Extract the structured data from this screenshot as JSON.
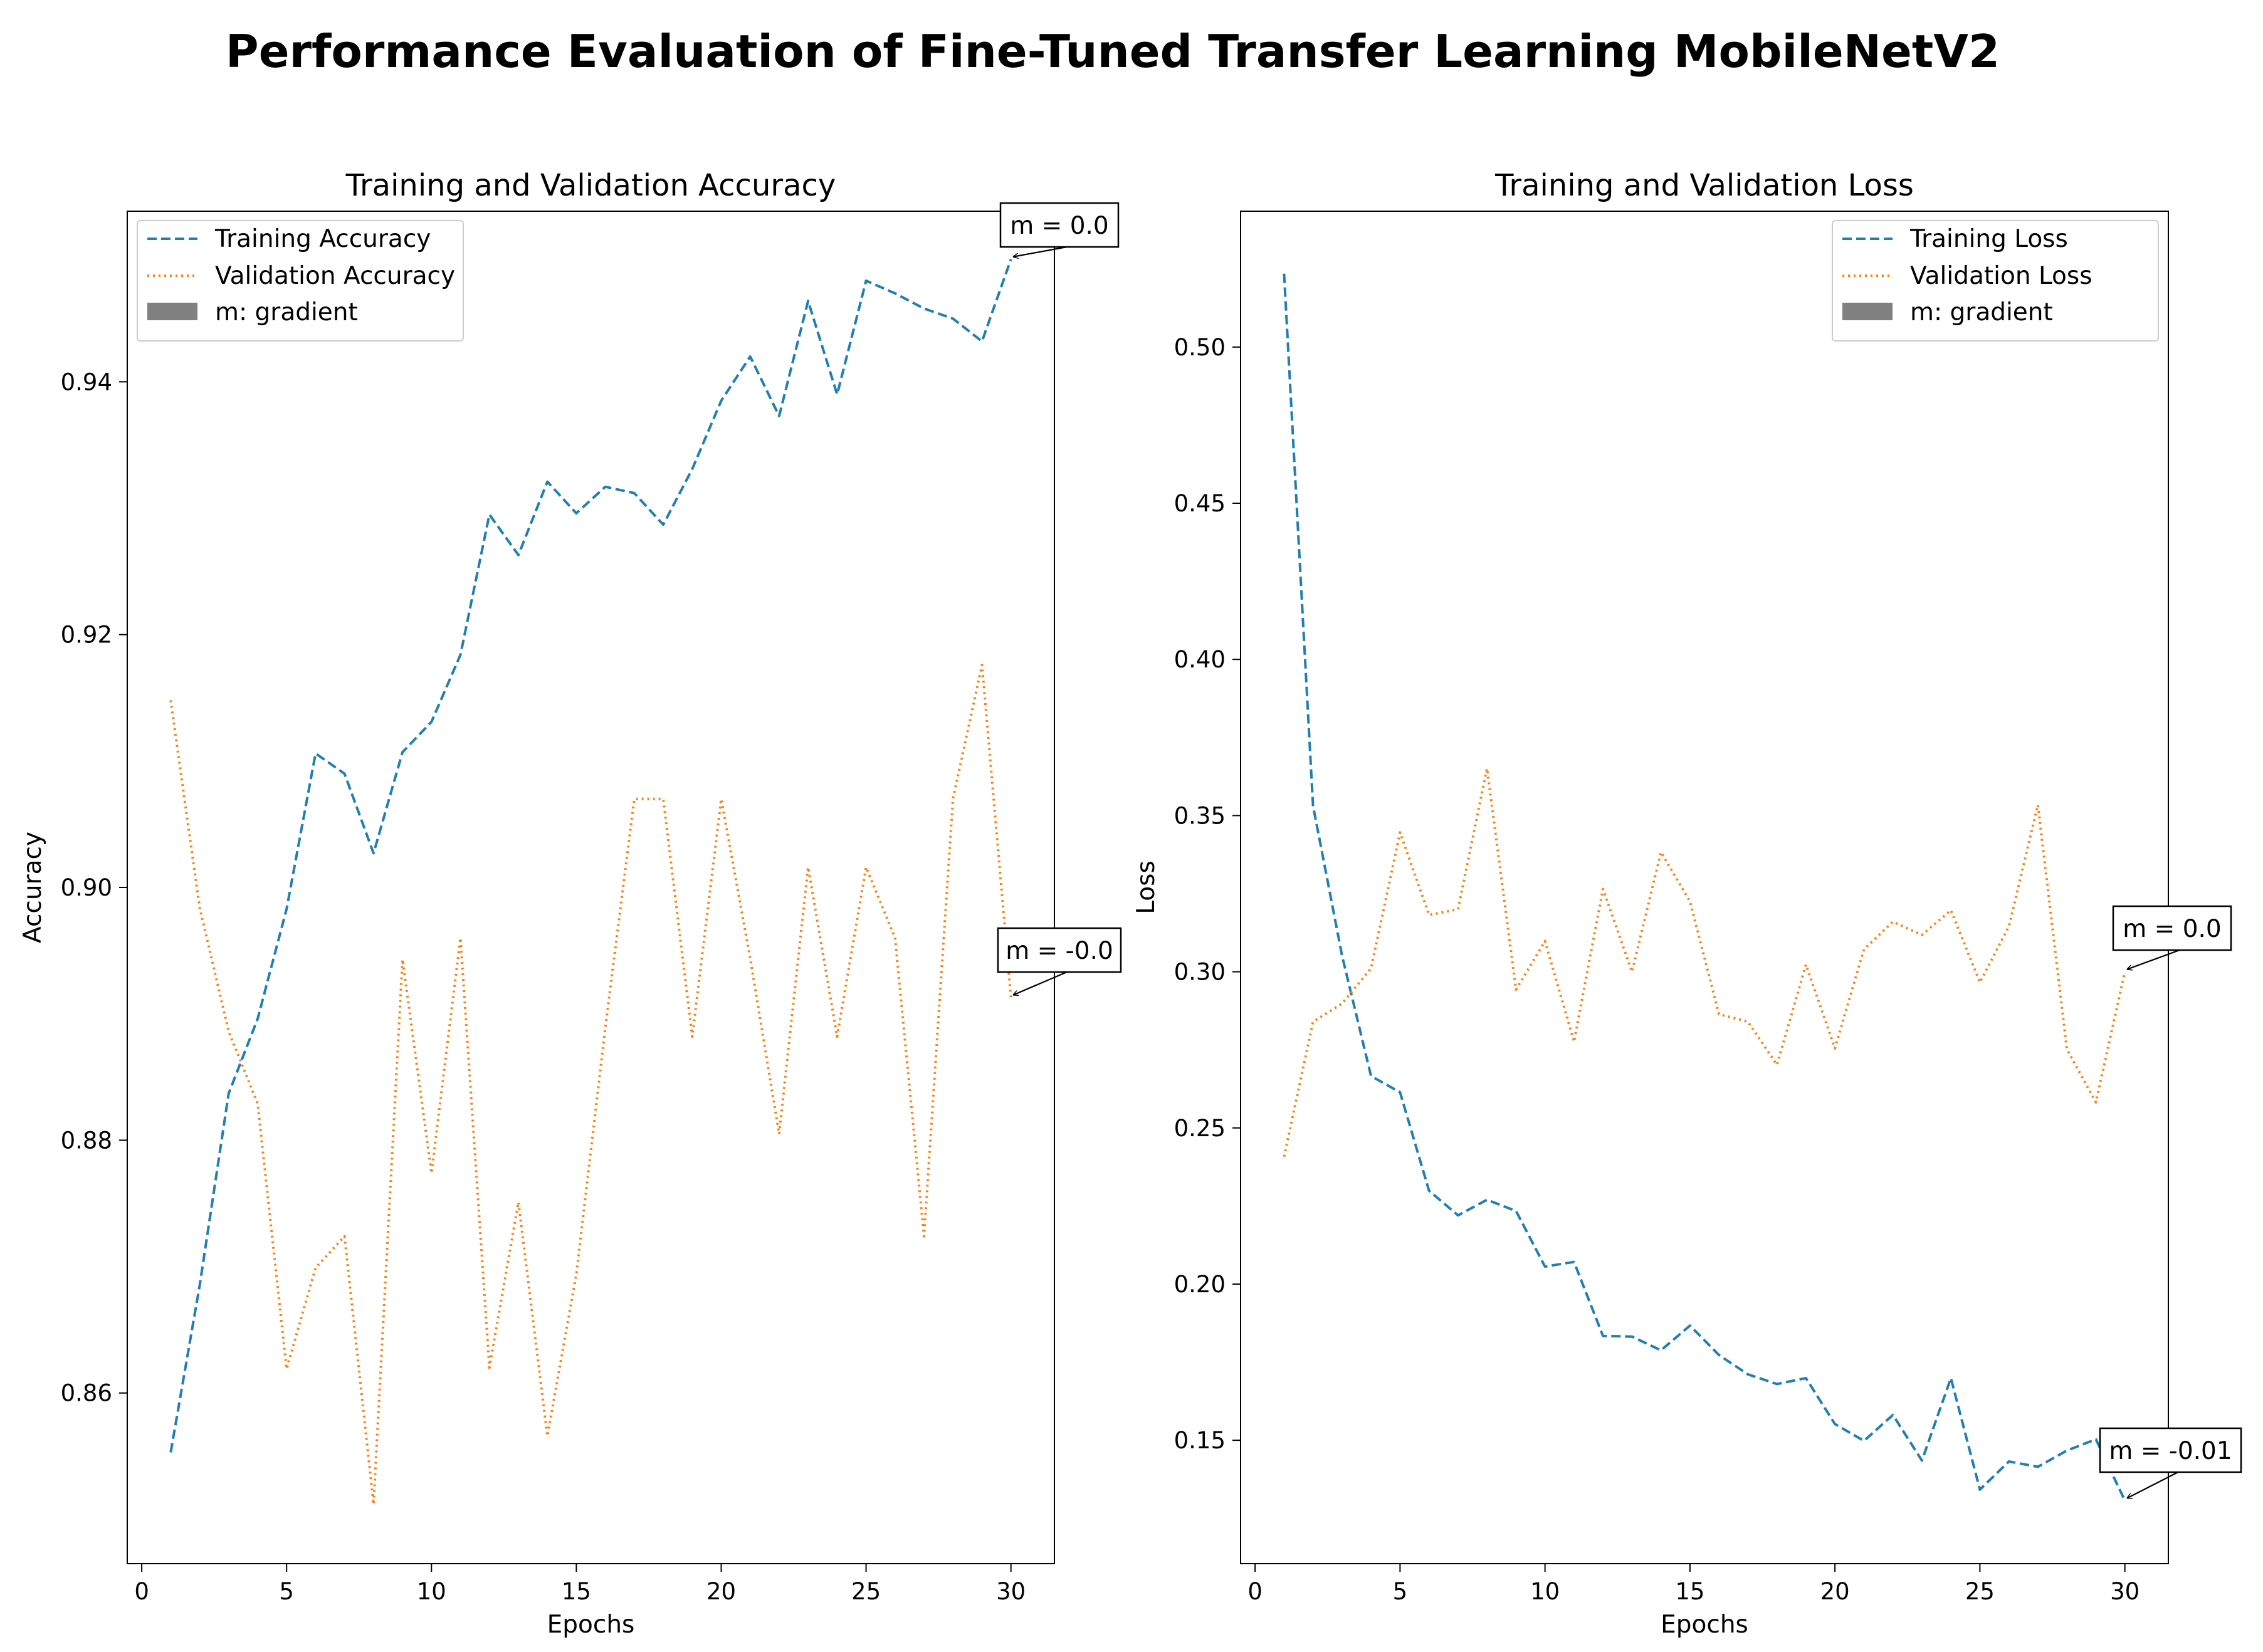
{
  "suptitle": "Performance Evaluation of Fine-Tuned Transfer Learning MobileNetV2",
  "colors": {
    "train": "#1f7fb4",
    "val": "#ff7f0e",
    "gradient_patch": "#808080"
  },
  "chart_data": [
    {
      "type": "line",
      "title": "Training and Validation Accuracy",
      "xlabel": "Epochs",
      "ylabel": "Accuracy",
      "xlim": [
        -0.5,
        31.5
      ],
      "ylim": [
        0.8465,
        0.9535
      ],
      "xticks": [
        0,
        5,
        10,
        15,
        20,
        25,
        30
      ],
      "xtick_labels": [
        "0",
        "5",
        "10",
        "15",
        "20",
        "25",
        "30"
      ],
      "yticks": [
        0.86,
        0.88,
        0.9,
        0.92,
        0.94
      ],
      "ytick_labels": [
        "0.86",
        "0.88",
        "0.90",
        "0.92",
        "0.94"
      ],
      "legend_position": "upper-left",
      "legend": [
        "Training Accuracy",
        "Validation Accuracy",
        "m: gradient"
      ],
      "x": [
        1,
        2,
        3,
        4,
        5,
        6,
        7,
        8,
        9,
        10,
        11,
        12,
        13,
        14,
        15,
        16,
        17,
        18,
        19,
        20,
        21,
        22,
        23,
        24,
        25,
        26,
        27,
        28,
        29,
        30
      ],
      "series": [
        {
          "name": "Training Accuracy",
          "style": "dashed",
          "values": [
            0.8553,
            0.8685,
            0.8837,
            0.8896,
            0.8983,
            0.9106,
            0.909,
            0.9027,
            0.9107,
            0.9131,
            0.9184,
            0.9295,
            0.9263,
            0.9321,
            0.9296,
            0.9317,
            0.9312,
            0.9287,
            0.9331,
            0.9385,
            0.942,
            0.9373,
            0.9464,
            0.939,
            0.948,
            0.947,
            0.9458,
            0.945,
            0.9432,
            0.9497
          ]
        },
        {
          "name": "Validation Accuracy",
          "style": "dotted",
          "values": [
            0.9148,
            0.8984,
            0.8886,
            0.8829,
            0.8619,
            0.8699,
            0.8724,
            0.8512,
            0.8943,
            0.8774,
            0.896,
            0.862,
            0.8751,
            0.8566,
            0.8694,
            0.8889,
            0.907,
            0.907,
            0.8882,
            0.907,
            0.8944,
            0.8805,
            0.9016,
            0.8882,
            0.9016,
            0.896,
            0.8724,
            0.907,
            0.9176,
            0.8913
          ]
        }
      ],
      "annotations": [
        {
          "text": "m = 0.0",
          "x": 30,
          "y": 0.9497
        },
        {
          "text": "m = -0.0",
          "x": 30,
          "y": 0.8913
        }
      ]
    },
    {
      "type": "line",
      "title": "Training and Validation Loss",
      "xlabel": "Epochs",
      "ylabel": "Loss",
      "xlim": [
        -0.5,
        31.5
      ],
      "ylim": [
        0.1105,
        0.5435
      ],
      "xticks": [
        0,
        5,
        10,
        15,
        20,
        25,
        30
      ],
      "xtick_labels": [
        "0",
        "5",
        "10",
        "15",
        "20",
        "25",
        "30"
      ],
      "yticks": [
        0.15,
        0.2,
        0.25,
        0.3,
        0.35,
        0.4,
        0.45,
        0.5
      ],
      "ytick_labels": [
        "0.15",
        "0.20",
        "0.25",
        "0.30",
        "0.35",
        "0.40",
        "0.45",
        "0.50"
      ],
      "legend_position": "upper-right",
      "legend": [
        "Training Loss",
        "Validation Loss",
        "m: gradient"
      ],
      "x": [
        1,
        2,
        3,
        4,
        5,
        6,
        7,
        8,
        9,
        10,
        11,
        12,
        13,
        14,
        15,
        16,
        17,
        18,
        19,
        20,
        21,
        22,
        23,
        24,
        25,
        26,
        27,
        28,
        29,
        30
      ],
      "series": [
        {
          "name": "Training Loss",
          "style": "dashed",
          "values": [
            0.5235,
            0.3531,
            0.3051,
            0.2666,
            0.2614,
            0.2299,
            0.222,
            0.227,
            0.2234,
            0.2056,
            0.2071,
            0.1834,
            0.1832,
            0.1788,
            0.1867,
            0.1773,
            0.1711,
            0.168,
            0.1699,
            0.1552,
            0.1498,
            0.1581,
            0.1435,
            0.1699,
            0.1342,
            0.1432,
            0.1415,
            0.1467,
            0.1503,
            0.1307
          ]
        },
        {
          "name": "Validation Loss",
          "style": "dotted",
          "values": [
            0.2408,
            0.284,
            0.2898,
            0.3011,
            0.3446,
            0.3182,
            0.32,
            0.3651,
            0.2943,
            0.3098,
            0.2776,
            0.3265,
            0.3,
            0.3383,
            0.3225,
            0.2864,
            0.284,
            0.2702,
            0.3023,
            0.2755,
            0.3072,
            0.316,
            0.3118,
            0.3197,
            0.2966,
            0.3145,
            0.3534,
            0.2752,
            0.2582,
            0.3
          ]
        }
      ],
      "annotations": [
        {
          "text": "m = 0.0",
          "x": 30,
          "y": 0.3
        },
        {
          "text": "m = -0.01",
          "x": 30,
          "y": 0.1307
        }
      ]
    }
  ]
}
